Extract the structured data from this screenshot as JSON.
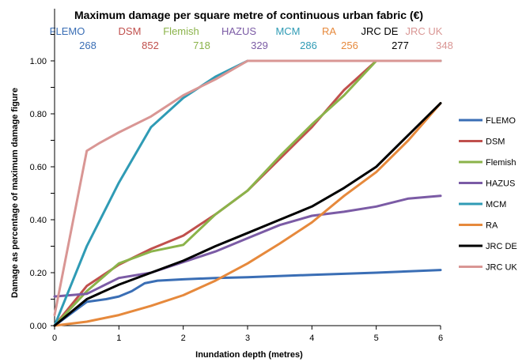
{
  "chart_data": {
    "type": "line",
    "title": "Maximum damage per square metre of continuous urban fabric (€)",
    "xlabel": "Inundation depth (metres)",
    "ylabel": "Damage as percentage of maximum damage figure",
    "xlim": [
      0,
      6
    ],
    "ylim": [
      0,
      1
    ],
    "x_ticks": [
      "0",
      "1",
      "2",
      "3",
      "4",
      "5",
      "6"
    ],
    "y_ticks": [
      "0.00",
      "0.20",
      "0.40",
      "0.60",
      "0.80",
      "1.00"
    ],
    "grid": false,
    "legend_position": "right",
    "series": [
      {
        "name": "FLEMO",
        "color": "#3a6eb5",
        "max_damage": "268",
        "x": [
          0,
          0.5,
          0.8,
          1.0,
          1.2,
          1.4,
          1.6,
          2,
          2.5,
          3,
          4,
          5,
          6
        ],
        "y": [
          0,
          0.09,
          0.1,
          0.11,
          0.13,
          0.16,
          0.17,
          0.175,
          0.18,
          0.183,
          0.192,
          0.2,
          0.21
        ]
      },
      {
        "name": "DSM",
        "color": "#c0504d",
        "max_damage": "852",
        "x": [
          0,
          0.5,
          1,
          1.5,
          2,
          2.5,
          3,
          3.5,
          4,
          4.5,
          5,
          6
        ],
        "y": [
          0,
          0.15,
          0.23,
          0.29,
          0.34,
          0.42,
          0.51,
          0.63,
          0.75,
          0.89,
          1.0,
          1.0
        ]
      },
      {
        "name": "Flemish",
        "color": "#8bb34a",
        "max_damage": "718",
        "x": [
          0,
          0.5,
          1,
          1.5,
          2,
          2.5,
          3,
          3.5,
          4,
          4.5,
          5,
          6
        ],
        "y": [
          0,
          0.13,
          0.235,
          0.28,
          0.305,
          0.42,
          0.51,
          0.64,
          0.76,
          0.87,
          1.0,
          1.0
        ]
      },
      {
        "name": "HAZUS",
        "color": "#7b5ba5",
        "max_damage": "329",
        "x": [
          0,
          0.5,
          1,
          1.5,
          2,
          2.5,
          3,
          3.5,
          4,
          4.5,
          5,
          5.5,
          6
        ],
        "y": [
          0.11,
          0.12,
          0.18,
          0.2,
          0.24,
          0.28,
          0.33,
          0.38,
          0.415,
          0.43,
          0.45,
          0.48,
          0.49
        ]
      },
      {
        "name": "MCM",
        "color": "#2f9bb5",
        "max_damage": "286",
        "x": [
          0,
          0.25,
          0.5,
          1,
          1.5,
          2,
          2.5,
          3,
          4,
          5,
          6
        ],
        "y": [
          0,
          0.15,
          0.3,
          0.54,
          0.75,
          0.86,
          0.94,
          1.0,
          1.0,
          1.0,
          1.0
        ]
      },
      {
        "name": "RA",
        "color": "#e6893c",
        "max_damage": "256",
        "x": [
          0,
          0.5,
          1,
          1.5,
          2,
          2.5,
          3,
          3.5,
          4,
          4.5,
          5,
          5.5,
          6
        ],
        "y": [
          0,
          0.015,
          0.04,
          0.075,
          0.115,
          0.17,
          0.235,
          0.31,
          0.39,
          0.49,
          0.58,
          0.7,
          0.84
        ]
      },
      {
        "name": "JRC DE",
        "color": "#000000",
        "max_damage": "277",
        "x": [
          0,
          0.5,
          1,
          1.5,
          2,
          2.5,
          3,
          3.5,
          4,
          4.5,
          5,
          5.5,
          6
        ],
        "y": [
          0,
          0.1,
          0.155,
          0.2,
          0.245,
          0.3,
          0.35,
          0.4,
          0.45,
          0.52,
          0.6,
          0.72,
          0.84
        ]
      },
      {
        "name": "JRC UK",
        "color": "#d99694",
        "max_damage": "348",
        "x": [
          0,
          0.5,
          0.7,
          1,
          1.5,
          2,
          2.5,
          3,
          4,
          5,
          6
        ],
        "y": [
          0.04,
          0.66,
          0.69,
          0.73,
          0.79,
          0.87,
          0.93,
          1.0,
          1.0,
          1.0,
          1.0
        ]
      }
    ]
  }
}
